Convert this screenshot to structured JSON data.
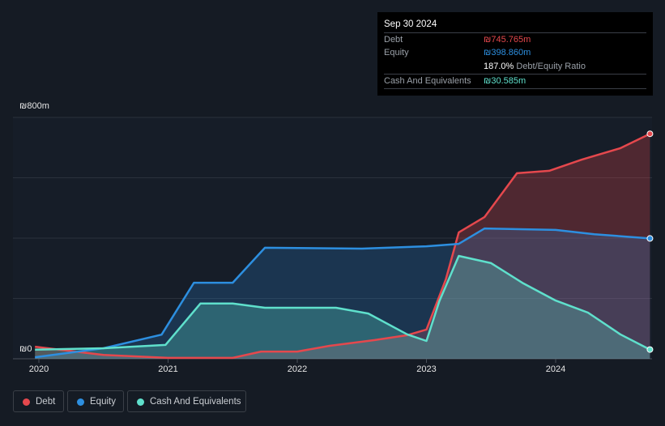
{
  "tooltip": {
    "date": "Sep 30 2024",
    "debt_label": "Debt",
    "debt_value": "₪745.765m",
    "equity_label": "Equity",
    "equity_value": "₪398.860m",
    "ratio_value": "187.0%",
    "ratio_label": "Debt/Equity Ratio",
    "cash_label": "Cash And Equivalents",
    "cash_value": "₪30.585m"
  },
  "chart_data": {
    "type": "area",
    "ylabel_top": "₪800m",
    "ylabel_bottom": "₪0",
    "ylim": [
      0,
      800
    ],
    "xlim": [
      2019.9,
      2024.75
    ],
    "x_ticks": [
      "2020",
      "2021",
      "2022",
      "2023",
      "2024"
    ],
    "series": [
      {
        "name": "Debt",
        "color": "#e5484d",
        "points": [
          [
            2019.97,
            40
          ],
          [
            2020.5,
            13
          ],
          [
            2021,
            3
          ],
          [
            2021.5,
            3
          ],
          [
            2021.72,
            24
          ],
          [
            2022,
            24
          ],
          [
            2022.25,
            43
          ],
          [
            2022.6,
            62
          ],
          [
            2022.85,
            78
          ],
          [
            2023,
            97
          ],
          [
            2023.15,
            263
          ],
          [
            2023.25,
            419
          ],
          [
            2023.45,
            470
          ],
          [
            2023.7,
            615
          ],
          [
            2023.95,
            623
          ],
          [
            2024.2,
            660
          ],
          [
            2024.5,
            698
          ],
          [
            2024.73,
            745.765
          ]
        ]
      },
      {
        "name": "Equity",
        "color": "#2d8fe0",
        "points": [
          [
            2019.97,
            5
          ],
          [
            2020.5,
            35
          ],
          [
            2020.95,
            80
          ],
          [
            2021.2,
            252
          ],
          [
            2021.5,
            252
          ],
          [
            2021.75,
            368
          ],
          [
            2022.5,
            365
          ],
          [
            2023,
            373
          ],
          [
            2023.25,
            381
          ],
          [
            2023.45,
            432
          ],
          [
            2024,
            427
          ],
          [
            2024.3,
            413
          ],
          [
            2024.73,
            398.86
          ]
        ]
      },
      {
        "name": "Cash And Equivalents",
        "color": "#5fe0cc",
        "points": [
          [
            2019.97,
            30
          ],
          [
            2020.5,
            35
          ],
          [
            2020.98,
            46
          ],
          [
            2021.25,
            183
          ],
          [
            2021.5,
            183
          ],
          [
            2021.75,
            169
          ],
          [
            2022.3,
            169
          ],
          [
            2022.55,
            150
          ],
          [
            2022.85,
            81
          ],
          [
            2023,
            59
          ],
          [
            2023.1,
            191
          ],
          [
            2023.25,
            341
          ],
          [
            2023.5,
            317
          ],
          [
            2023.75,
            250
          ],
          [
            2024,
            193
          ],
          [
            2024.25,
            153
          ],
          [
            2024.5,
            81
          ],
          [
            2024.73,
            30.585
          ]
        ]
      }
    ]
  },
  "legend": [
    "Debt",
    "Equity",
    "Cash And Equivalents"
  ]
}
